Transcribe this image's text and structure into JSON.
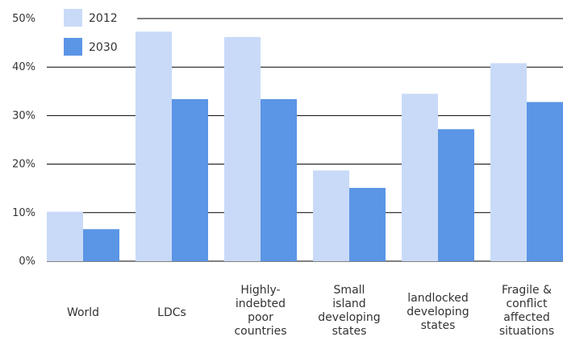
{
  "chart_data": {
    "type": "bar",
    "title": "",
    "xlabel": "",
    "ylabel": "",
    "ylim": [
      0,
      50
    ],
    "yticks": [
      "0%",
      "10%",
      "20%",
      "30%",
      "40%",
      "50%"
    ],
    "ytick_values": [
      0,
      10,
      20,
      30,
      40,
      50
    ],
    "grid": true,
    "legend_position": "top-left",
    "categories": [
      [
        "World"
      ],
      [
        "LDCs"
      ],
      [
        "Highly-",
        "indebted",
        "poor",
        "countries"
      ],
      [
        "Small",
        "island",
        "developing",
        "states"
      ],
      [
        "landlocked",
        "developing",
        "states"
      ],
      [
        "Fragile &",
        "conflict",
        "affected",
        "situations"
      ]
    ],
    "series": [
      {
        "name": "2012",
        "color": "#c9daf8",
        "values": [
          10.2,
          47.3,
          46.2,
          18.7,
          34.5,
          40.8
        ]
      },
      {
        "name": "2030",
        "color": "#5b95e6",
        "values": [
          6.6,
          33.4,
          33.4,
          15.1,
          27.2,
          32.8
        ]
      }
    ]
  }
}
